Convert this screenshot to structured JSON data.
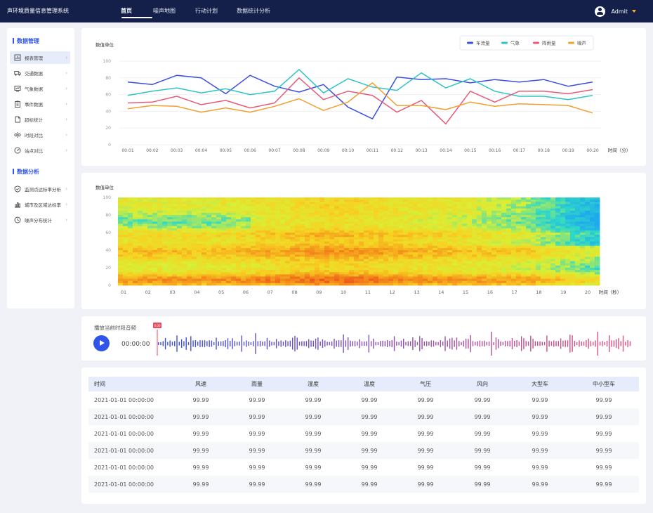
{
  "header": {
    "app_title": "声环境质量信息管理系统",
    "nav": [
      "首页",
      "噪声地图",
      "行动计划",
      "数据统计分析"
    ],
    "active_nav": 0,
    "user_name": "Admit"
  },
  "sidebar": {
    "section1_title": "数据管理",
    "section1_items": [
      {
        "label": "报表管理",
        "icon": "report-icon",
        "active": true
      },
      {
        "label": "交通数据",
        "icon": "truck-icon"
      },
      {
        "label": "气象数据",
        "icon": "chart-board-icon"
      },
      {
        "label": "事件数据",
        "icon": "clipboard-icon"
      },
      {
        "label": "超标统计",
        "icon": "document-icon"
      },
      {
        "label": "时段对比",
        "icon": "compare-icon"
      },
      {
        "label": "站点对比",
        "icon": "gauge-icon"
      }
    ],
    "section2_title": "数据分析",
    "section2_items": [
      {
        "label": "监测点达标率分析",
        "icon": "shield-icon"
      },
      {
        "label": "城市及区域达标率",
        "icon": "bar-chart-icon"
      },
      {
        "label": "噪声分布统计",
        "icon": "clock-icon"
      }
    ]
  },
  "colors": {
    "accent": "#2f54eb",
    "header_bg": "#14204a",
    "series": [
      "#3a4fe0",
      "#2ec4c4",
      "#e85a7a",
      "#f0a030"
    ]
  },
  "chart_data": [
    {
      "type": "line",
      "title": "数值单位",
      "xlabel": "时间（分）",
      "ylabel": "数值单位",
      "ylim": [
        0,
        100
      ],
      "yticks": [
        0,
        20,
        40,
        60,
        80,
        100
      ],
      "grid": true,
      "legend_position": "top-right",
      "categories": [
        "00:01",
        "00:02",
        "00:03",
        "00:04",
        "00:05",
        "00:06",
        "00:07",
        "00:08",
        "00:09",
        "00:10",
        "00:11",
        "00:12",
        "00:13",
        "00:14",
        "00:15",
        "00:16",
        "00:17",
        "00:18",
        "00:19",
        "00:20"
      ],
      "series": [
        {
          "name": "车流量",
          "values": [
            75,
            72,
            83,
            80,
            61,
            83,
            70,
            63,
            72,
            45,
            31,
            81,
            78,
            79,
            74,
            78,
            75,
            78,
            70,
            75
          ]
        },
        {
          "name": "气象",
          "values": [
            59,
            64,
            68,
            62,
            67,
            60,
            64,
            90,
            62,
            79,
            69,
            65,
            86,
            68,
            79,
            64,
            58,
            58,
            54,
            59
          ]
        },
        {
          "name": "降雨量",
          "values": [
            50,
            51,
            58,
            48,
            53,
            44,
            50,
            80,
            54,
            64,
            59,
            39,
            53,
            25,
            64,
            51,
            64,
            64,
            61,
            66
          ]
        },
        {
          "name": "噪声",
          "values": [
            43,
            47,
            46,
            39,
            44,
            39,
            46,
            55,
            41,
            51,
            74,
            47,
            47,
            42,
            51,
            46,
            49,
            48,
            47,
            38
          ]
        }
      ]
    },
    {
      "type": "heatmap",
      "title": "数值单位",
      "xlabel": "时间（秒）",
      "ylabel": "数值单位",
      "xlim": [
        0,
        20
      ],
      "ylim": [
        0,
        100
      ],
      "xticks": [
        "01",
        "02",
        "03",
        "04",
        "05",
        "06",
        "07",
        "08",
        "09",
        "10",
        "11",
        "12",
        "13",
        "14",
        "15",
        "16",
        "17",
        "18",
        "19",
        "20"
      ],
      "yticks": [
        0,
        20,
        40,
        60,
        80,
        100
      ],
      "color_scale": [
        "#1fa8ee",
        "#2ed8c8",
        "#d8ef35",
        "#f7d222",
        "#f48a1a",
        "#e8431c"
      ]
    }
  ],
  "audio": {
    "title": "播放当前时段音频",
    "time": "00:00:00",
    "marker_label": "0:00"
  },
  "table": {
    "columns": [
      "时间",
      "风速",
      "雨量",
      "湿度",
      "温度",
      "气压",
      "风向",
      "大型车",
      "中小型车"
    ],
    "rows": [
      [
        "2021-01-01 00:00:00",
        "99.99",
        "99.99",
        "99.99",
        "99.99",
        "99.99",
        "99.99",
        "99.99",
        "99.99"
      ],
      [
        "2021-01-01 00:00:00",
        "99.99",
        "99.99",
        "99.99",
        "99.99",
        "99.99",
        "99.99",
        "99.99",
        "99.99"
      ],
      [
        "2021-01-01 00:00:00",
        "99.99",
        "99.99",
        "99.99",
        "99.99",
        "99.99",
        "99.99",
        "99.99",
        "99.99"
      ],
      [
        "2021-01-01 00:00:00",
        "99.99",
        "99.99",
        "99.99",
        "99.99",
        "99.99",
        "99.99",
        "99.99",
        "99.99"
      ],
      [
        "2021-01-01 00:00:00",
        "99.99",
        "99.99",
        "99.99",
        "99.99",
        "99.99",
        "99.99",
        "99.99",
        "99.99"
      ],
      [
        "2021-01-01 00:00:00",
        "99.99",
        "99.99",
        "99.99",
        "99.99",
        "99.99",
        "99.99",
        "99.99",
        "99.99"
      ]
    ]
  }
}
